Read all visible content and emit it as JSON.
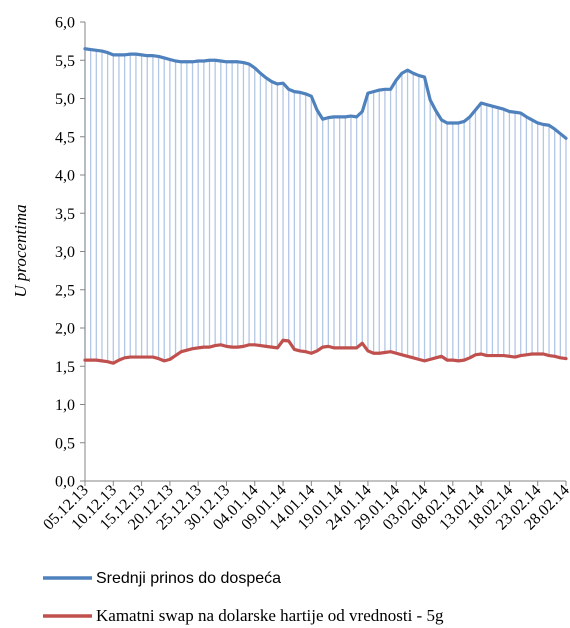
{
  "chart_data": {
    "type": "line",
    "ylabel": "U procentima",
    "xlabel": "",
    "ylim": [
      0,
      6
    ],
    "yticks": [
      "0,0",
      "0,5",
      "1,0",
      "1,5",
      "2,0",
      "2,5",
      "3,0",
      "3,5",
      "4,0",
      "4,5",
      "5,0",
      "5,5",
      "6,0"
    ],
    "x_tick_labels": [
      "05.12.13",
      "10.12.13",
      "15.12.13",
      "20.12.13",
      "25.12.13",
      "30.12.13",
      "04.01.14",
      "09.01.14",
      "14.01.14",
      "19.01.14",
      "24.01.14",
      "29.01.14",
      "03.02.14",
      "08.02.14",
      "13.02.14",
      "18.02.14",
      "23.02.14",
      "28.02.14"
    ],
    "x": [
      "05.12.13",
      "06.12.13",
      "07.12.13",
      "08.12.13",
      "09.12.13",
      "10.12.13",
      "11.12.13",
      "12.12.13",
      "13.12.13",
      "14.12.13",
      "15.12.13",
      "16.12.13",
      "17.12.13",
      "18.12.13",
      "19.12.13",
      "20.12.13",
      "21.12.13",
      "22.12.13",
      "23.12.13",
      "24.12.13",
      "25.12.13",
      "26.12.13",
      "27.12.13",
      "28.12.13",
      "29.12.13",
      "30.12.13",
      "31.12.13",
      "01.01.14",
      "02.01.14",
      "03.01.14",
      "04.01.14",
      "05.01.14",
      "06.01.14",
      "07.01.14",
      "08.01.14",
      "09.01.14",
      "10.01.14",
      "11.01.14",
      "12.01.14",
      "13.01.14",
      "14.01.14",
      "15.01.14",
      "16.01.14",
      "17.01.14",
      "18.01.14",
      "19.01.14",
      "20.01.14",
      "21.01.14",
      "22.01.14",
      "23.01.14",
      "24.01.14",
      "25.01.14",
      "26.01.14",
      "27.01.14",
      "28.01.14",
      "29.01.14",
      "30.01.14",
      "31.01.14",
      "01.02.14",
      "02.02.14",
      "03.02.14",
      "04.02.14",
      "05.02.14",
      "06.02.14",
      "07.02.14",
      "08.02.14",
      "09.02.14",
      "10.02.14",
      "11.02.14",
      "12.02.14",
      "13.02.14",
      "14.02.14",
      "15.02.14",
      "16.02.14",
      "17.02.14",
      "18.02.14",
      "19.02.14",
      "20.02.14",
      "21.02.14",
      "22.02.14",
      "23.02.14",
      "24.02.14",
      "25.02.14",
      "26.02.14",
      "27.02.14",
      "28.02.14"
    ],
    "series": [
      {
        "name": "Srednji prinos do dospeća",
        "color": "#4f81bd",
        "values": [
          5.65,
          5.64,
          5.63,
          5.62,
          5.6,
          5.57,
          5.57,
          5.57,
          5.58,
          5.58,
          5.57,
          5.56,
          5.56,
          5.55,
          5.53,
          5.51,
          5.49,
          5.48,
          5.48,
          5.48,
          5.49,
          5.49,
          5.5,
          5.5,
          5.49,
          5.48,
          5.48,
          5.48,
          5.47,
          5.45,
          5.4,
          5.33,
          5.27,
          5.22,
          5.19,
          5.2,
          5.12,
          5.09,
          5.08,
          5.06,
          5.03,
          4.85,
          4.73,
          4.75,
          4.76,
          4.76,
          4.76,
          4.77,
          4.76,
          4.83,
          5.07,
          5.09,
          5.11,
          5.12,
          5.12,
          5.24,
          5.33,
          5.37,
          5.33,
          5.3,
          5.28,
          4.98,
          4.84,
          4.72,
          4.68,
          4.68,
          4.68,
          4.7,
          4.76,
          4.85,
          4.94,
          4.92,
          4.9,
          4.88,
          4.86,
          4.83,
          4.82,
          4.81,
          4.76,
          4.72,
          4.68,
          4.66,
          4.65,
          4.6,
          4.54,
          4.48
        ]
      },
      {
        "name": "Kamatni swap na dolarske hartije od vrednosti - 5g",
        "color": "#c0504d",
        "values": [
          1.58,
          1.58,
          1.58,
          1.57,
          1.56,
          1.54,
          1.58,
          1.61,
          1.62,
          1.62,
          1.62,
          1.62,
          1.62,
          1.6,
          1.57,
          1.59,
          1.64,
          1.69,
          1.71,
          1.73,
          1.74,
          1.75,
          1.75,
          1.77,
          1.78,
          1.76,
          1.75,
          1.75,
          1.76,
          1.78,
          1.78,
          1.77,
          1.76,
          1.75,
          1.74,
          1.84,
          1.83,
          1.72,
          1.7,
          1.69,
          1.67,
          1.7,
          1.75,
          1.76,
          1.74,
          1.74,
          1.74,
          1.74,
          1.74,
          1.8,
          1.7,
          1.67,
          1.67,
          1.68,
          1.69,
          1.67,
          1.65,
          1.63,
          1.61,
          1.59,
          1.57,
          1.59,
          1.61,
          1.63,
          1.58,
          1.58,
          1.57,
          1.58,
          1.61,
          1.65,
          1.66,
          1.64,
          1.64,
          1.64,
          1.64,
          1.63,
          1.62,
          1.64,
          1.65,
          1.66,
          1.66,
          1.66,
          1.64,
          1.63,
          1.61,
          1.6
        ]
      }
    ],
    "drop_lines": true,
    "grid": false,
    "legend_position": "bottom"
  },
  "legend": {
    "items": [
      {
        "label": "Srednji prinos do dospeća",
        "color": "#4f81bd"
      },
      {
        "label": "Kamatni swap na dolarske hartije od vrednosti - 5g",
        "color": "#c0504d"
      }
    ]
  }
}
